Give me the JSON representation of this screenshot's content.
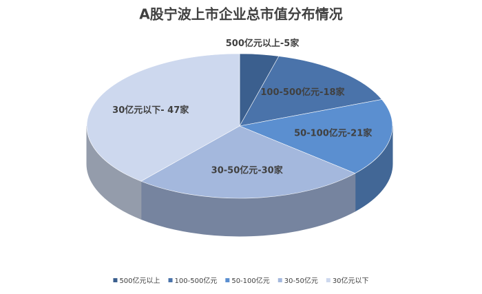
{
  "chart_data": {
    "type": "pie3d",
    "title": "A股宁波上市企业总市值分布情况",
    "categories": [
      "500亿元以上",
      "100-500亿元",
      "50-100亿元",
      "30-50亿元",
      "30亿元以下"
    ],
    "values": [
      5,
      18,
      21,
      30,
      47
    ],
    "value_labels": [
      "500亿元以上-5家",
      "100-500亿元-18家",
      "50-100亿元-21家",
      "30-50亿元-30家",
      "30亿元以下- 47家"
    ],
    "colors": [
      "#3b5f8e",
      "#4a73aa",
      "#5b8fd0",
      "#a4b8dd",
      "#cdd8ee"
    ],
    "legend": "bottom"
  }
}
